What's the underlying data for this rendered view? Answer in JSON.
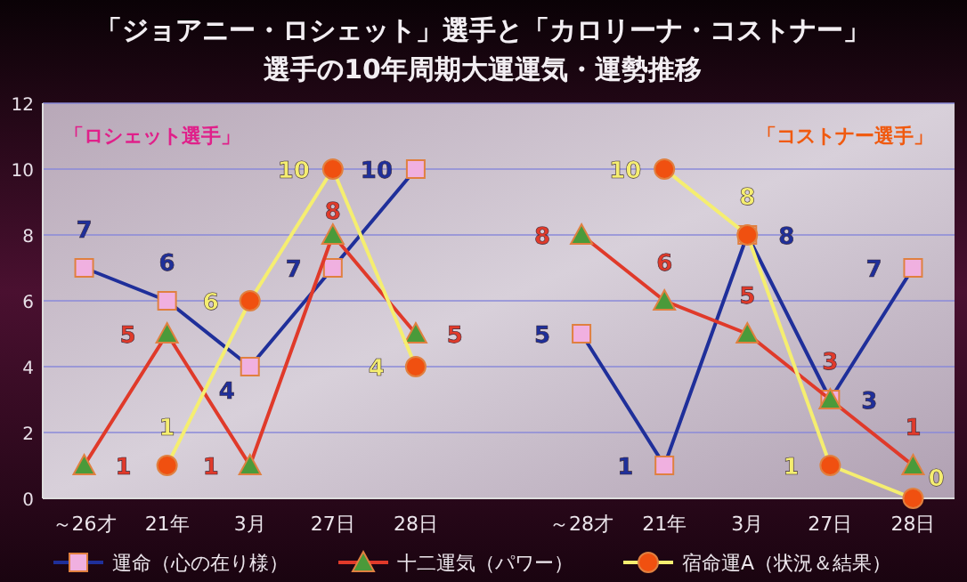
{
  "chart_data": {
    "type": "line",
    "title": "「ジョアニー・ロシェット」選手と「カロリーナ・コストナー」",
    "subtitle": "選手の10年周期大運運気・運勢推移",
    "categories": [
      "～26才",
      "21年",
      "3月",
      "27日",
      "28日",
      null,
      "～28才",
      "21年",
      "3月",
      "27日",
      "28日"
    ],
    "series": [
      {
        "name": "運命（心の在り様）",
        "color": "#1f2f9a",
        "marker": "square",
        "colors": [
          "#f0b0e0",
          "#f0b0e0",
          "#f0b0e0",
          "#f0b0e0",
          "#f0b0e0",
          null,
          "#f0b0e0",
          "#f0b0e0",
          "#f0b0e0",
          "#f0b0e0",
          "#f0b0e0"
        ],
        "values": [
          7,
          6,
          4,
          7,
          10,
          null,
          5,
          1,
          8,
          3,
          7
        ]
      },
      {
        "name": "十二運気（パワー）",
        "color": "#e03a2a",
        "marker": "triangle",
        "colors": [
          "#4a9a3a",
          "#4a9a3a",
          "#4a9a3a",
          "#4a9a3a",
          "#4a9a3a",
          null,
          "#4a9a3a",
          "#4a9a3a",
          "#4a9a3a",
          "#4a9a3a",
          "#4a9a3a"
        ],
        "values": [
          1,
          5,
          1,
          8,
          5,
          null,
          8,
          6,
          5,
          3,
          1
        ]
      },
      {
        "name": "宿命運A（状況＆結果）",
        "color": "#f5ee70",
        "marker": "circle",
        "colors": [
          null,
          "#f05010",
          "#f05010",
          "#f05010",
          "#f05010",
          null,
          null,
          "#f05010",
          "#f05010",
          "#f05010",
          "#f05010"
        ],
        "values": [
          null,
          1,
          6,
          10,
          4,
          null,
          null,
          10,
          8,
          1,
          0
        ]
      }
    ],
    "ylim": [
      0,
      12
    ],
    "yticks": [
      0,
      2,
      4,
      6,
      8,
      10,
      12
    ],
    "grid": "y",
    "legend": "bottom",
    "data_labels": true,
    "line_style": "solid",
    "annotations": [
      "「ロシェット選手」",
      "「コストナー選手」"
    ]
  }
}
